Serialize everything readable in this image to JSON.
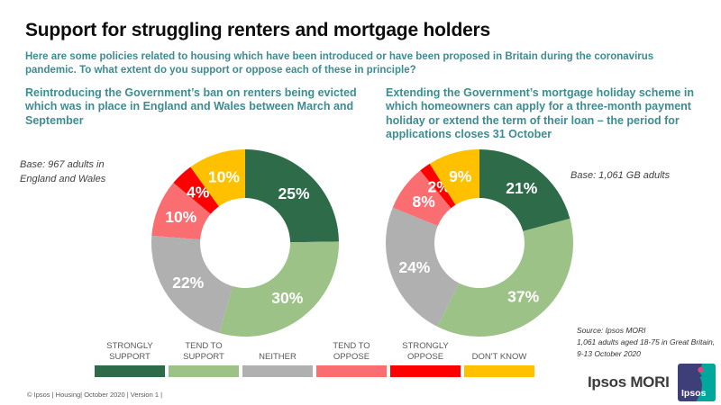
{
  "header": {
    "title": "Support for struggling renters and mortgage holders",
    "subtitle": "Here are some policies related to housing which have been introduced or have been proposed in Britain during the coronavirus pandemic. To what extent do you support or oppose each of these in principle?"
  },
  "chart_data": [
    {
      "type": "pie",
      "subtype": "donut",
      "title": "Reintroducing the Government’s ban on renters being evicted which was in place in England and Wales between March and September",
      "base_label": "Base: 967 adults in\nEngland and Wales",
      "categories": [
        "Strongly support",
        "Tend to support",
        "Neither",
        "Tend to oppose",
        "Strongly oppose",
        "Don't know"
      ],
      "values": [
        25,
        30,
        22,
        10,
        4,
        10
      ],
      "unit": "%",
      "colors": [
        "#2D6B49",
        "#9CC287",
        "#B0B0B0",
        "#FA6E72",
        "#FE0000",
        "#FFC000"
      ],
      "start_angle_deg": 0,
      "direction": "clockwise"
    },
    {
      "type": "pie",
      "subtype": "donut",
      "title": "Extending the Government’s mortgage holiday scheme in which homeowners can apply for a three-month payment holiday or extend the term of their loan – the period for applications closes 31 October",
      "base_label": "Base: 1,061 GB adults",
      "categories": [
        "Strongly support",
        "Tend to support",
        "Neither",
        "Tend to oppose",
        "Strongly oppose",
        "Don't know"
      ],
      "values": [
        21,
        37,
        24,
        8,
        2,
        9
      ],
      "unit": "%",
      "colors": [
        "#2D6B49",
        "#9CC287",
        "#B0B0B0",
        "#FA6E72",
        "#FE0000",
        "#FFC000"
      ],
      "start_angle_deg": 0,
      "direction": "clockwise"
    }
  ],
  "legend": {
    "position": "bottom",
    "items": [
      {
        "label": "STRONGLY\nSUPPORT",
        "color": "#2D6B49"
      },
      {
        "label": "TEND TO\nSUPPORT",
        "color": "#9CC287"
      },
      {
        "label": "NEITHER",
        "color": "#B0B0B0"
      },
      {
        "label": "TEND TO\nOPPOSE",
        "color": "#FA6E72"
      },
      {
        "label": "STRONGLY\nOPPOSE",
        "color": "#FE0000"
      },
      {
        "label": "DON'T KNOW",
        "color": "#FFC000"
      }
    ]
  },
  "source": {
    "line1": "Source: Ipsos MORI",
    "line2": "1,061 adults aged 18-75 in Great Britain,",
    "line3": "9-13 October 2020"
  },
  "footer": "© Ipsos | Housing| October 2020 | Version 1 |",
  "branding": {
    "wordmark": "Ipsos MORI",
    "logo_text": "Ipsos",
    "logo_navy": "#3E3E78",
    "logo_teal": "#00A79B",
    "logo_pink": "#E0457B"
  },
  "theme": {
    "accent_teal": "#3C8C91",
    "title_color": "#0D0D0D"
  }
}
